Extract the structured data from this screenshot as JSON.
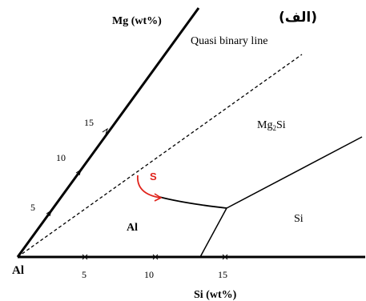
{
  "figure_label": "(الف)",
  "axes": {
    "mg_axis_title": "Mg (wt%)",
    "si_axis_title": "Si (wt%)",
    "origin_label": "Al",
    "mg_ticks": [
      "5",
      "10",
      "15"
    ],
    "si_ticks": [
      "5",
      "10",
      "15"
    ]
  },
  "regions": {
    "al": "Al",
    "si": "Si",
    "mg2si_base": "Mg",
    "mg2si_sub": "2",
    "mg2si_tail": "Si"
  },
  "annotations": {
    "quasi_binary_line": "Quasi binary line",
    "s_marker": "S"
  },
  "colors": {
    "lines": "#000000",
    "s_marker": "#e0231b"
  }
}
